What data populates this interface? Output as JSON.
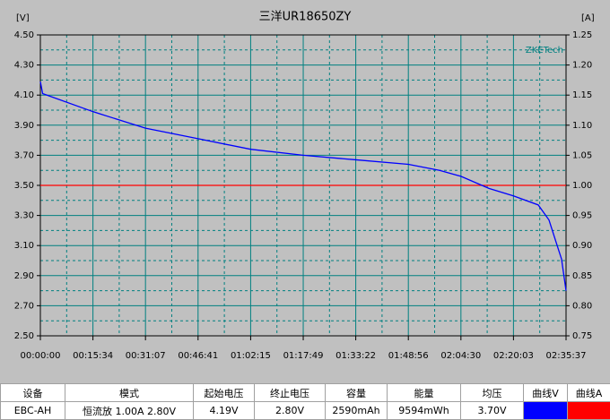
{
  "chart_data": {
    "type": "line",
    "title": "三洋UR18650ZY",
    "y_label": "[V]",
    "y2_label": "[A]",
    "annotation": "ZKETech",
    "xlim": [
      0,
      9337
    ],
    "xticks": [
      {
        "value": 0,
        "label": "00:00:00"
      },
      {
        "value": 934,
        "label": "00:15:34"
      },
      {
        "value": 1867,
        "label": "00:31:07"
      },
      {
        "value": 2801,
        "label": "00:46:41"
      },
      {
        "value": 3735,
        "label": "01:02:15"
      },
      {
        "value": 4669,
        "label": "01:17:49"
      },
      {
        "value": 5602,
        "label": "01:33:22"
      },
      {
        "value": 6536,
        "label": "01:48:56"
      },
      {
        "value": 7470,
        "label": "02:04:30"
      },
      {
        "value": 8403,
        "label": "02:20:03"
      },
      {
        "value": 9337,
        "label": "02:35:37"
      }
    ],
    "ylim": [
      2.5,
      4.5
    ],
    "yticks": [
      {
        "value": 2.5,
        "label": "2.50"
      },
      {
        "value": 2.7,
        "label": "2.70"
      },
      {
        "value": 2.9,
        "label": "2.90"
      },
      {
        "value": 3.1,
        "label": "3.10"
      },
      {
        "value": 3.3,
        "label": "3.30"
      },
      {
        "value": 3.5,
        "label": "3.50"
      },
      {
        "value": 3.7,
        "label": "3.70"
      },
      {
        "value": 3.9,
        "label": "3.90"
      },
      {
        "value": 4.1,
        "label": "4.10"
      },
      {
        "value": 4.3,
        "label": "4.30"
      },
      {
        "value": 4.5,
        "label": "4.50"
      }
    ],
    "y2lim": [
      0.75,
      1.25
    ],
    "y2ticks": [
      {
        "value": 0.75,
        "label": "0.75"
      },
      {
        "value": 0.8,
        "label": "0.80"
      },
      {
        "value": 0.85,
        "label": "0.85"
      },
      {
        "value": 0.9,
        "label": "0.90"
      },
      {
        "value": 0.95,
        "label": "0.95"
      },
      {
        "value": 1.0,
        "label": "1.00"
      },
      {
        "value": 1.05,
        "label": "1.05"
      },
      {
        "value": 1.1,
        "label": "1.10"
      },
      {
        "value": 1.15,
        "label": "1.15"
      },
      {
        "value": 1.2,
        "label": "1.20"
      },
      {
        "value": 1.25,
        "label": "1.25"
      }
    ],
    "grid": true,
    "series": [
      {
        "name": "曲线V",
        "color": "#0000ff",
        "x": [
          0,
          40,
          934,
          1867,
          2801,
          3735,
          4669,
          5602,
          6536,
          7091,
          7470,
          7967,
          8403,
          8843,
          9034,
          9162,
          9257,
          9337
        ],
        "values": [
          4.19,
          4.11,
          3.99,
          3.88,
          3.81,
          3.74,
          3.7,
          3.67,
          3.64,
          3.6,
          3.56,
          3.48,
          3.43,
          3.37,
          3.27,
          3.12,
          3.01,
          2.8
        ]
      },
      {
        "name": "曲线A",
        "color": "#ff0000",
        "axis": "y2",
        "x": [
          0,
          9337
        ],
        "values": [
          1.0,
          1.0
        ]
      }
    ]
  },
  "table": {
    "headers": [
      "设备",
      "模式",
      "起始电压",
      "终止电压",
      "容量",
      "能量",
      "均压"
    ],
    "rows": [
      [
        "EBC-AH",
        "恒流放 1.00A 2.80V",
        "4.19V",
        "2.80V",
        "2590mAh",
        "9594mWh",
        "3.70V"
      ]
    ]
  }
}
